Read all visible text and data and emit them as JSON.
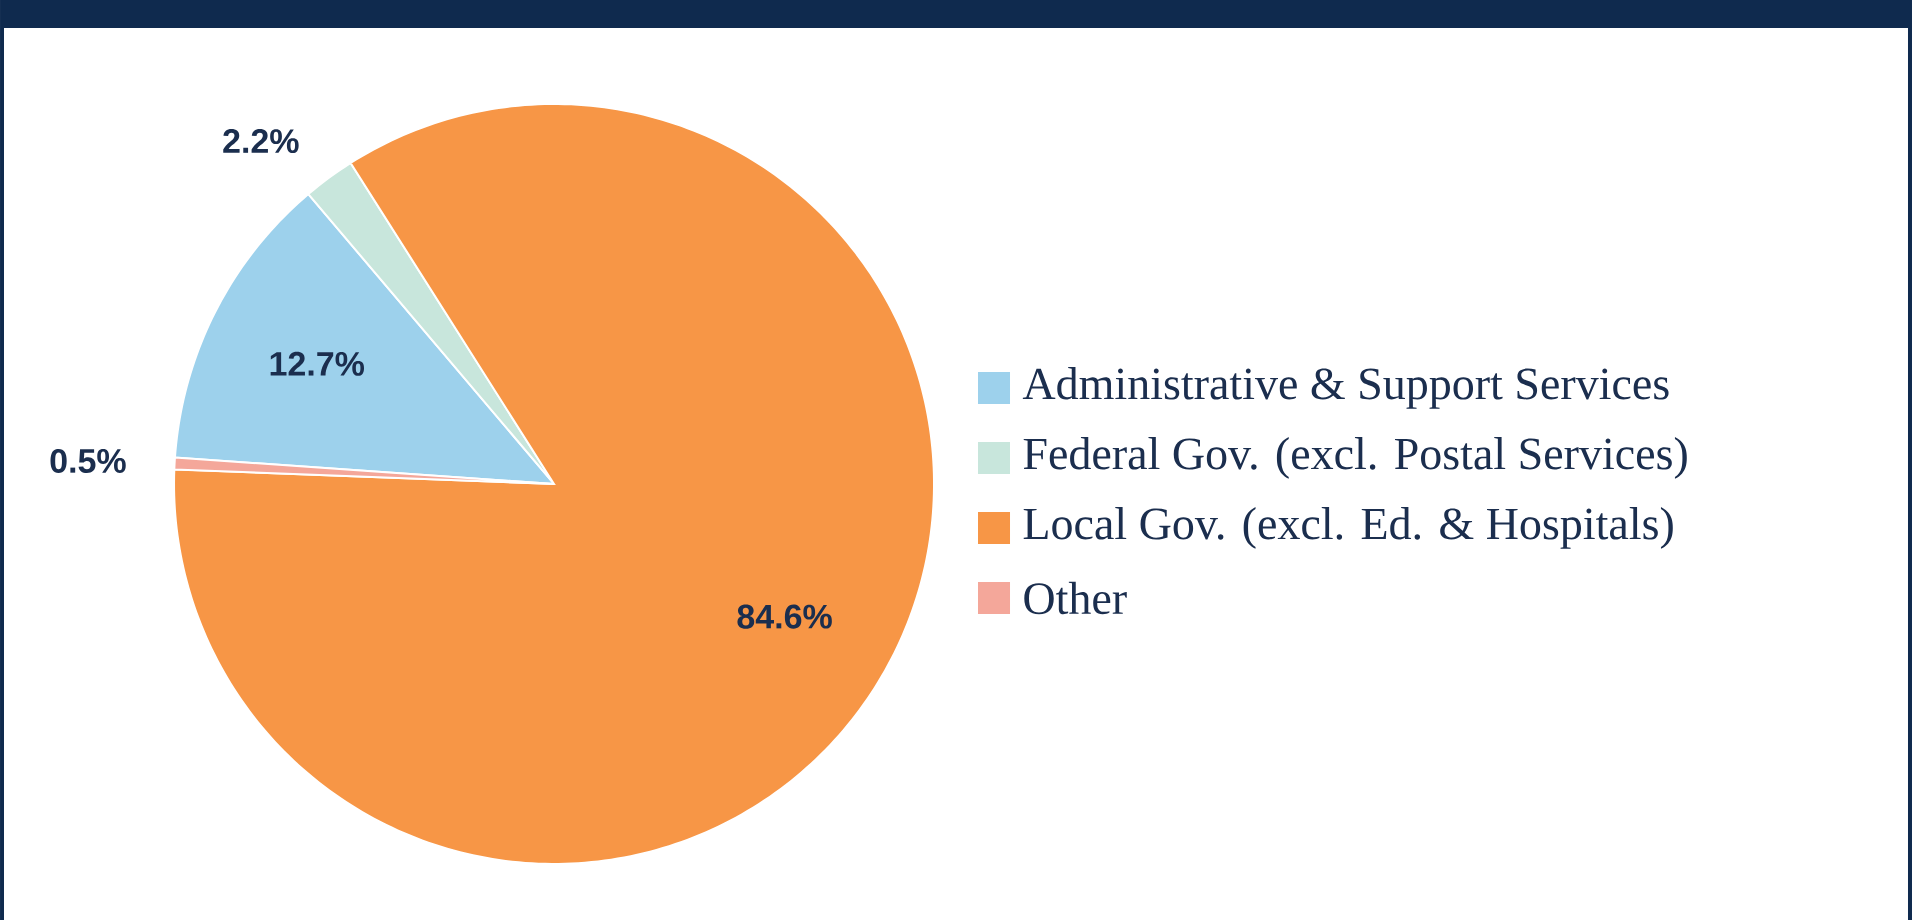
{
  "chart_data": {
    "type": "pie",
    "categories": [
      "Administrative & Support Services",
      "Federal Gov. (excl. Postal Services)",
      "Local Gov. (excl. Ed. & Hospitals)",
      "Other"
    ],
    "values": [
      12.7,
      2.2,
      84.6,
      0.5
    ],
    "value_labels": [
      "12.7%",
      "2.2%",
      "84.6%",
      "0.5%"
    ],
    "colors": [
      "#9dd1ec",
      "#c8e6dc",
      "#f79646",
      "#f4a79a"
    ],
    "legend": "right"
  }
}
